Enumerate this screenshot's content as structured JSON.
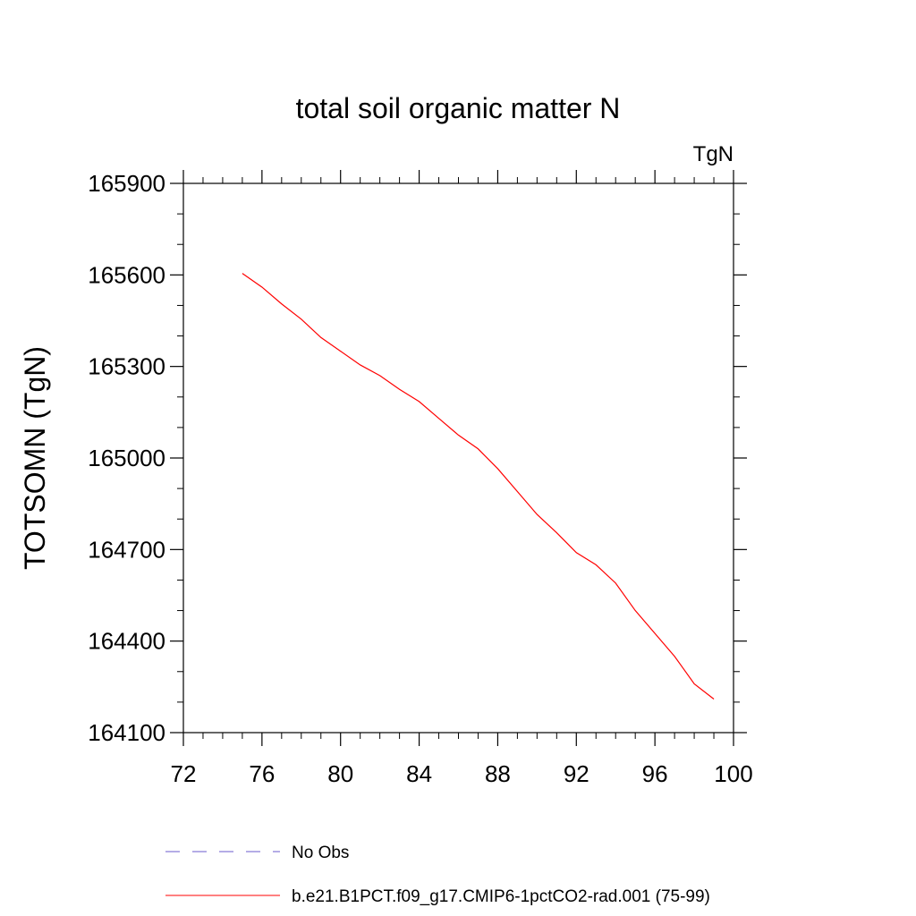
{
  "chart_data": {
    "type": "line",
    "title": "total soil organic matter N",
    "units_label": "TgN",
    "ylabel": "TOTSOMN  (TgN)",
    "xlabel": "",
    "xlim": [
      72,
      100
    ],
    "ylim": [
      164100,
      165900
    ],
    "xticks": [
      72,
      76,
      80,
      84,
      88,
      92,
      96,
      100
    ],
    "yticks": [
      164100,
      164400,
      164700,
      165000,
      165300,
      165600,
      165900
    ],
    "grid": false,
    "legend_position": "bottom",
    "series": [
      {
        "name": "b.e21.B1PCT.f09_g17.CMIP6-1pctCO2-rad.001 (75-99)",
        "color": "#ff0000",
        "style": "solid",
        "x": [
          75,
          76,
          77,
          78,
          79,
          80,
          81,
          82,
          83,
          84,
          85,
          86,
          87,
          88,
          89,
          90,
          91,
          92,
          93,
          94,
          95,
          96,
          97,
          98,
          99
        ],
        "y": [
          165605,
          165560,
          165505,
          165455,
          165395,
          165350,
          165305,
          165270,
          165225,
          165185,
          165130,
          165075,
          165030,
          164965,
          164890,
          164815,
          164755,
          164690,
          164650,
          164590,
          164500,
          164425,
          164350,
          164260,
          164210
        ]
      }
    ],
    "legend": [
      {
        "label": "No Obs",
        "color": "#6a5acd",
        "style": "dashed"
      },
      {
        "label": "b.e21.B1PCT.f09_g17.CMIP6-1pctCO2-rad.001 (75-99)",
        "color": "#ff0000",
        "style": "solid"
      }
    ]
  }
}
